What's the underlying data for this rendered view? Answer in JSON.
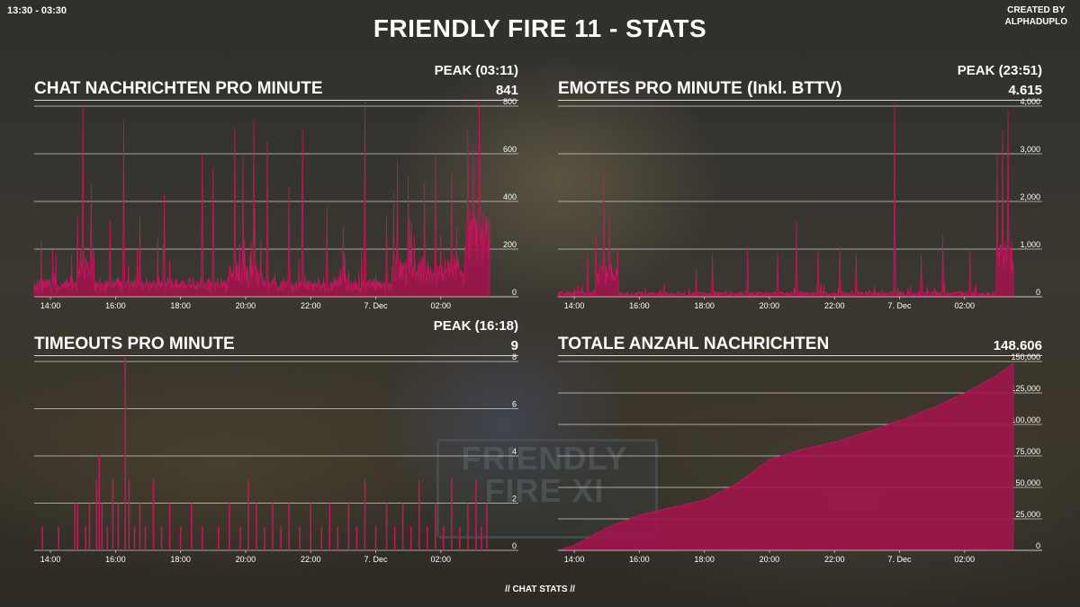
{
  "header": {
    "time_range": "13:30 - 03:30",
    "title": "FRIENDLY FIRE 11 - STATS",
    "credit_line1": "CREATED BY",
    "credit_line2": "ALPHADUPLO"
  },
  "footer": {
    "text": "// CHAT STATS //"
  },
  "background": {
    "sign_text_line1": "FRIENDLY",
    "sign_text_line2": "FIRE XI"
  },
  "colors": {
    "series": "#c2185b",
    "series_fill": "#a0154d",
    "grid": "#cfcfcf"
  },
  "panels": [
    {
      "title": "CHAT NACHRICHTEN PRO MINUTE",
      "peak_label": "PEAK (03:11)",
      "headline_value": "841"
    },
    {
      "title": "EMOTES PRO MINUTE (Inkl. BTTV)",
      "peak_label": "PEAK (23:51)",
      "headline_value": "4.615"
    },
    {
      "title": "TIMEOUTS PRO MINUTE",
      "peak_label": "PEAK (16:18)",
      "headline_value": "9"
    },
    {
      "title": "TOTALE ANZAHL NACHRICHTEN",
      "peak_label": "",
      "headline_value": "148.606"
    }
  ],
  "chart_data": [
    {
      "type": "area",
      "title": "CHAT NACHRICHTEN PRO MINUTE",
      "x_range": [
        "13:30",
        "03:30"
      ],
      "x_ticks": [
        "14:00",
        "16:00",
        "18:00",
        "20:00",
        "22:00",
        "7. Dec",
        "02:00"
      ],
      "y_ticks": [
        "0",
        "200",
        "400",
        "600",
        "800"
      ],
      "ylim": [
        0,
        800
      ],
      "grid": true,
      "baseline": 50,
      "noise": 40,
      "peak": {
        "time": "03:11",
        "value": 841
      },
      "segments": [
        {
          "start": "14:50",
          "end": "15:20",
          "level": 130
        },
        {
          "start": "19:30",
          "end": "20:30",
          "level": 90
        },
        {
          "start": "00:30",
          "end": "02:45",
          "level": 110
        },
        {
          "start": "02:45",
          "end": "03:30",
          "level": 250
        }
      ],
      "spikes": [
        {
          "time": "14:10",
          "value": 180
        },
        {
          "time": "14:50",
          "value": 340
        },
        {
          "time": "15:00",
          "value": 800
        },
        {
          "time": "15:15",
          "value": 470
        },
        {
          "time": "15:50",
          "value": 320
        },
        {
          "time": "16:15",
          "value": 740
        },
        {
          "time": "16:45",
          "value": 340
        },
        {
          "time": "17:30",
          "value": 430
        },
        {
          "time": "18:40",
          "value": 600
        },
        {
          "time": "19:00",
          "value": 540
        },
        {
          "time": "19:40",
          "value": 710
        },
        {
          "time": "19:55",
          "value": 590
        },
        {
          "time": "20:15",
          "value": 740
        },
        {
          "time": "20:40",
          "value": 650
        },
        {
          "time": "21:20",
          "value": 460
        },
        {
          "time": "21:45",
          "value": 700
        },
        {
          "time": "22:30",
          "value": 380
        },
        {
          "time": "23:00",
          "value": 300
        },
        {
          "time": "23:40",
          "value": 820
        },
        {
          "time": "00:20",
          "value": 340
        },
        {
          "time": "00:40",
          "value": 570
        },
        {
          "time": "01:00",
          "value": 510
        },
        {
          "time": "01:30",
          "value": 480
        },
        {
          "time": "01:50",
          "value": 600
        },
        {
          "time": "02:20",
          "value": 520
        },
        {
          "time": "02:50",
          "value": 700
        },
        {
          "time": "03:00",
          "value": 640
        },
        {
          "time": "03:11",
          "value": 841
        }
      ]
    },
    {
      "type": "area",
      "title": "EMOTES PRO MINUTE (Inkl. BTTV)",
      "x_range": [
        "13:30",
        "03:30"
      ],
      "x_ticks": [
        "14:00",
        "16:00",
        "18:00",
        "20:00",
        "22:00",
        "7. Dec",
        "02:00"
      ],
      "y_ticks": [
        "0",
        "1,000",
        "2,000",
        "3,000",
        "4,000"
      ],
      "ylim": [
        0,
        4000
      ],
      "grid": true,
      "baseline": 60,
      "noise": 80,
      "peak": {
        "time": "23:51",
        "value": 4615
      },
      "segments": [
        {
          "start": "14:40",
          "end": "15:20",
          "level": 500
        },
        {
          "start": "03:00",
          "end": "03:30",
          "level": 900
        }
      ],
      "spikes": [
        {
          "time": "14:25",
          "value": 900
        },
        {
          "time": "14:40",
          "value": 1300
        },
        {
          "time": "14:55",
          "value": 2600
        },
        {
          "time": "15:05",
          "value": 1800
        },
        {
          "time": "15:20",
          "value": 1000
        },
        {
          "time": "17:45",
          "value": 600
        },
        {
          "time": "18:15",
          "value": 900
        },
        {
          "time": "19:20",
          "value": 1050
        },
        {
          "time": "20:15",
          "value": 900
        },
        {
          "time": "20:50",
          "value": 1600
        },
        {
          "time": "21:30",
          "value": 1000
        },
        {
          "time": "22:10",
          "value": 1050
        },
        {
          "time": "22:40",
          "value": 900
        },
        {
          "time": "23:51",
          "value": 4615
        },
        {
          "time": "00:40",
          "value": 900
        },
        {
          "time": "01:20",
          "value": 1300
        },
        {
          "time": "02:10",
          "value": 1000
        },
        {
          "time": "03:00",
          "value": 3000
        },
        {
          "time": "03:10",
          "value": 3500
        },
        {
          "time": "03:20",
          "value": 3900
        }
      ]
    },
    {
      "type": "bar",
      "title": "TIMEOUTS PRO MINUTE",
      "x_range": [
        "13:30",
        "03:30"
      ],
      "x_ticks": [
        "14:00",
        "16:00",
        "18:00",
        "20:00",
        "22:00",
        "7. Dec",
        "02:00"
      ],
      "y_ticks": [
        "0",
        "2",
        "4",
        "6",
        "8"
      ],
      "ylim": [
        0,
        8
      ],
      "grid": true,
      "peak": {
        "time": "16:18",
        "value": 9
      },
      "events": [
        {
          "time": "13:45",
          "value": 1
        },
        {
          "time": "14:15",
          "value": 1
        },
        {
          "time": "14:45",
          "value": 2
        },
        {
          "time": "14:50",
          "value": 2
        },
        {
          "time": "15:05",
          "value": 1
        },
        {
          "time": "15:12",
          "value": 2
        },
        {
          "time": "15:25",
          "value": 3
        },
        {
          "time": "15:30",
          "value": 4
        },
        {
          "time": "15:35",
          "value": 2
        },
        {
          "time": "15:45",
          "value": 1
        },
        {
          "time": "15:55",
          "value": 3
        },
        {
          "time": "16:05",
          "value": 2
        },
        {
          "time": "16:18",
          "value": 9
        },
        {
          "time": "16:25",
          "value": 3
        },
        {
          "time": "16:35",
          "value": 1
        },
        {
          "time": "16:45",
          "value": 2
        },
        {
          "time": "16:55",
          "value": 1
        },
        {
          "time": "17:10",
          "value": 3
        },
        {
          "time": "17:25",
          "value": 1
        },
        {
          "time": "17:40",
          "value": 2
        },
        {
          "time": "18:00",
          "value": 1
        },
        {
          "time": "18:20",
          "value": 2
        },
        {
          "time": "18:40",
          "value": 1
        },
        {
          "time": "19:10",
          "value": 1
        },
        {
          "time": "19:30",
          "value": 2
        },
        {
          "time": "19:50",
          "value": 1
        },
        {
          "time": "20:05",
          "value": 3
        },
        {
          "time": "20:20",
          "value": 2
        },
        {
          "time": "20:35",
          "value": 1
        },
        {
          "time": "20:50",
          "value": 2
        },
        {
          "time": "21:05",
          "value": 1
        },
        {
          "time": "21:20",
          "value": 2
        },
        {
          "time": "21:40",
          "value": 1
        },
        {
          "time": "22:00",
          "value": 2
        },
        {
          "time": "22:20",
          "value": 1
        },
        {
          "time": "22:35",
          "value": 2
        },
        {
          "time": "22:50",
          "value": 1
        },
        {
          "time": "23:10",
          "value": 2
        },
        {
          "time": "23:25",
          "value": 1
        },
        {
          "time": "23:40",
          "value": 3
        },
        {
          "time": "00:00",
          "value": 1
        },
        {
          "time": "00:20",
          "value": 2
        },
        {
          "time": "00:35",
          "value": 1
        },
        {
          "time": "00:50",
          "value": 2
        },
        {
          "time": "01:05",
          "value": 1
        },
        {
          "time": "01:20",
          "value": 3
        },
        {
          "time": "01:35",
          "value": 1
        },
        {
          "time": "01:50",
          "value": 2
        },
        {
          "time": "02:05",
          "value": 1
        },
        {
          "time": "02:20",
          "value": 3
        },
        {
          "time": "02:35",
          "value": 1
        },
        {
          "time": "02:50",
          "value": 2
        },
        {
          "time": "03:05",
          "value": 3
        },
        {
          "time": "03:15",
          "value": 1
        },
        {
          "time": "03:25",
          "value": 2
        }
      ]
    },
    {
      "type": "area",
      "title": "TOTALE ANZAHL NACHRICHTEN",
      "x_range": [
        "13:30",
        "03:30"
      ],
      "x_ticks": [
        "14:00",
        "16:00",
        "18:00",
        "20:00",
        "22:00",
        "7. Dec",
        "02:00"
      ],
      "y_ticks": [
        "0",
        "25,000",
        "50,000",
        "75,000",
        "100,000",
        "125,000",
        "150,000"
      ],
      "ylim": [
        0,
        150000
      ],
      "grid": true,
      "points": [
        {
          "time": "13:30",
          "value": 0
        },
        {
          "time": "14:00",
          "value": 4000
        },
        {
          "time": "15:00",
          "value": 18000
        },
        {
          "time": "16:00",
          "value": 28000
        },
        {
          "time": "17:00",
          "value": 34000
        },
        {
          "time": "18:00",
          "value": 40000
        },
        {
          "time": "19:00",
          "value": 53000
        },
        {
          "time": "20:00",
          "value": 72000
        },
        {
          "time": "21:00",
          "value": 80000
        },
        {
          "time": "22:00",
          "value": 86000
        },
        {
          "time": "23:00",
          "value": 94000
        },
        {
          "time": "00:00",
          "value": 103000
        },
        {
          "time": "01:00",
          "value": 113000
        },
        {
          "time": "02:00",
          "value": 125000
        },
        {
          "time": "03:00",
          "value": 139000
        },
        {
          "time": "03:30",
          "value": 148606
        }
      ]
    }
  ]
}
